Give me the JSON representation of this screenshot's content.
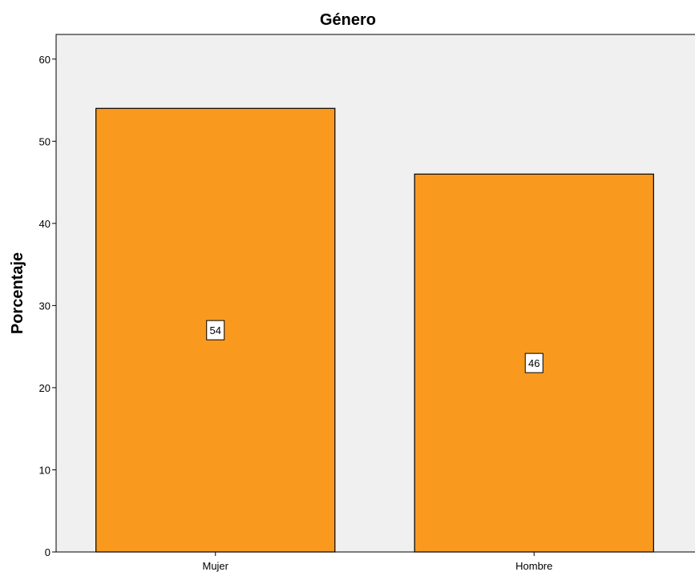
{
  "chart_data": {
    "type": "bar",
    "title": "Género",
    "xlabel": "",
    "ylabel": "Porcentaje",
    "categories": [
      "Mujer",
      "Hombre"
    ],
    "values": [
      54,
      46
    ],
    "data_labels": [
      "54",
      "46"
    ],
    "ylim": [
      0,
      63
    ],
    "yticks": [
      0,
      10,
      20,
      30,
      40,
      50,
      60
    ],
    "ytick_labels": [
      "0",
      "10",
      "20",
      "30",
      "40",
      "50",
      "60"
    ],
    "grid": false,
    "legend": "none",
    "colors": {
      "bar_fill": "#F99A1F",
      "bar_stroke": "#000000",
      "plot_background": "#F0F0F0",
      "label_box": "#FFFFFF"
    }
  }
}
